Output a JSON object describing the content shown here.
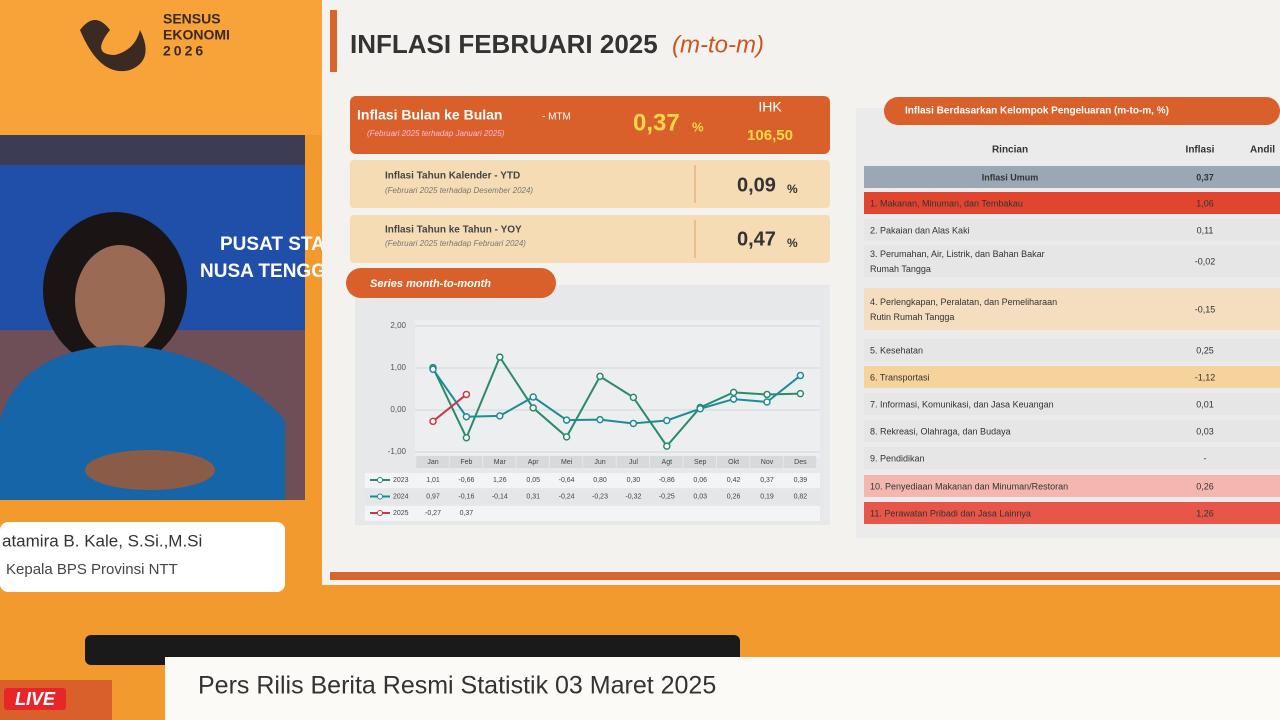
{
  "branding": {
    "logo_line1": "SENSUS",
    "logo_line2": "EKONOMI",
    "logo_line3": "2026"
  },
  "speaker": {
    "name": "atamira B. Kale, S.Si.,M.Si",
    "role": "Kepala BPS Provinsi NTT",
    "backdrop_text": "PUSAT STATISTI",
    "backdrop_text2": "NUSA TENGGA"
  },
  "slide": {
    "title": "INFLASI FEBRUARI 2025",
    "title_suffix": "(m-to-m)",
    "mtm": {
      "label": "Inflasi Bulan ke Bulan",
      "tag": "- MTM",
      "note": "(Februari 2025 terhadap Januari 2025)",
      "value": "0,37",
      "unit": "%",
      "ihk_label": "IHK",
      "ihk_value": "106,50"
    },
    "ytd": {
      "label": "Inflasi Tahun Kalender - YTD",
      "note": "(Februari 2025 terhadap Desember 2024)",
      "value": "0,09",
      "unit": "%"
    },
    "yoy": {
      "label": "Inflasi Tahun ke Tahun - YOY",
      "note": "(Februari 2025 terhadap Februari 2024)",
      "value": "0,47",
      "unit": "%"
    },
    "series_title": "Series month-to-month",
    "table": {
      "title": "Inflasi Berdasarkan Kelompok Pengeluaran (m-to-m, %)",
      "headers": [
        "Rincian",
        "Inflasi",
        "Andil"
      ],
      "rows": [
        {
          "label": [
            "Inflasi Umum"
          ],
          "inflasi": "0,37"
        },
        {
          "label": [
            "1. Makanan, Minuman, dan Tembakau"
          ],
          "inflasi": "1,06"
        },
        {
          "label": [
            "2. Pakaian dan Alas Kaki"
          ],
          "inflasi": "0,11"
        },
        {
          "label": [
            "3. Perumahan, Air, Listrik, dan Bahan Bakar",
            "Rumah Tangga"
          ],
          "inflasi": "-0,02"
        },
        {
          "label": [
            "4. Perlengkapan, Peralatan, dan Pemeliharaan",
            "Rutin Rumah Tangga"
          ],
          "inflasi": "-0,15"
        },
        {
          "label": [
            "5. Kesehatan"
          ],
          "inflasi": "0,25"
        },
        {
          "label": [
            "6. Transportasi"
          ],
          "inflasi": "-1,12"
        },
        {
          "label": [
            "7. Informasi, Komunikasi, dan Jasa Keuangan"
          ],
          "inflasi": "0,01"
        },
        {
          "label": [
            "8. Rekreasi, Olahraga, dan Budaya"
          ],
          "inflasi": "0,03"
        },
        {
          "label": [
            "9. Pendidikan"
          ],
          "inflasi": "-"
        },
        {
          "label": [
            "10. Penyediaan Makanan dan Minuman/Restoran"
          ],
          "inflasi": "0,26"
        },
        {
          "label": [
            "11. Perawatan Pribadi dan Jasa Lainnya"
          ],
          "inflasi": "1,26"
        }
      ]
    }
  },
  "chart_data": {
    "type": "line",
    "categories": [
      "Jan",
      "Feb",
      "Mar",
      "Apr",
      "Mei",
      "Jun",
      "Jul",
      "Agt",
      "Sep",
      "Okt",
      "Nov",
      "Des"
    ],
    "ylim": [
      -1,
      2
    ],
    "yticks": [
      {
        "value": -1,
        "label": "-1,00"
      },
      {
        "value": 0,
        "label": "0,00"
      },
      {
        "value": 1,
        "label": "1,00"
      },
      {
        "value": 2,
        "label": "2,00"
      }
    ],
    "series": [
      {
        "name": "2023",
        "color": "#2a8a6a",
        "values": [
          1.01,
          -0.66,
          1.26,
          0.05,
          -0.64,
          0.8,
          0.3,
          -0.86,
          0.06,
          0.42,
          0.37,
          0.39
        ],
        "value_labels": [
          "1,01",
          "-0,66",
          "1,26",
          "0,05",
          "-0,64",
          "0,80",
          "0,30",
          "-0,86",
          "0,06",
          "0,42",
          "0,37",
          "0,39"
        ]
      },
      {
        "name": "2024",
        "color": "#1d8c96",
        "values": [
          0.97,
          -0.16,
          -0.14,
          0.31,
          -0.24,
          -0.23,
          -0.32,
          -0.25,
          0.03,
          0.26,
          0.19,
          0.82
        ],
        "value_labels": [
          "0,97",
          "-0,16",
          "-0,14",
          "0,31",
          "-0,24",
          "-0,23",
          "-0,32",
          "-0,25",
          "0,03",
          "0,26",
          "0,19",
          "0,82"
        ]
      },
      {
        "name": "2025",
        "color": "#c8394a",
        "values": [
          -0.27,
          0.37,
          null,
          null,
          null,
          null,
          null,
          null,
          null,
          null,
          null,
          null
        ],
        "value_labels": [
          "-0,27",
          "0,37",
          null,
          null,
          null,
          null,
          null,
          null,
          null,
          null,
          null,
          null
        ]
      }
    ]
  },
  "banner": {
    "live": "LIVE",
    "title": "Pers Rilis Berita Resmi Statistik 03 Maret 2025"
  }
}
